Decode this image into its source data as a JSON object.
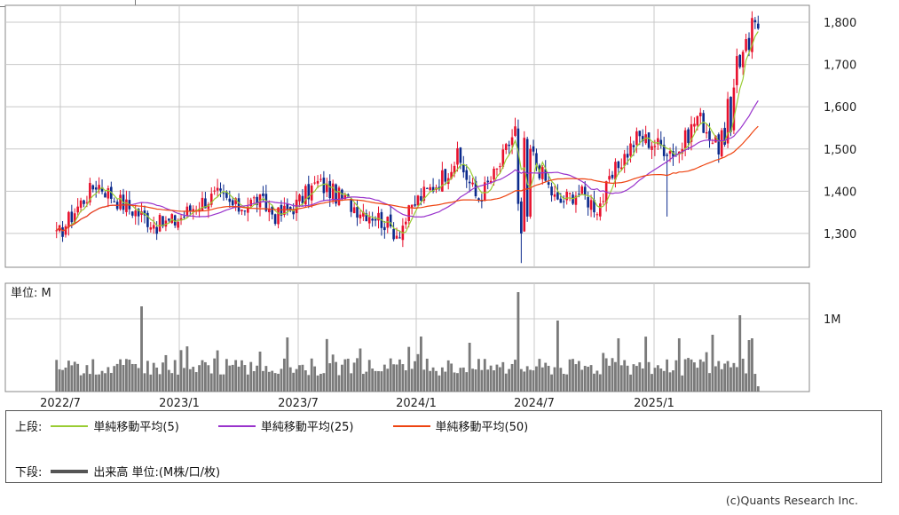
{
  "chart_data": [
    {
      "type": "candlestick",
      "x_tick_labels": [
        "2022/7",
        "2023/1",
        "2023/7",
        "2024/1",
        "2024/7",
        "2025/1"
      ],
      "y_tick_labels": [
        "1,800",
        "1,700",
        "1,600",
        "1,500",
        "1,400",
        "1,300"
      ],
      "y_ticks": [
        1800,
        1700,
        1600,
        1500,
        1400,
        1300
      ],
      "ylim": [
        1220,
        1840
      ],
      "grid": true,
      "up_color": "#e8112d",
      "down_color": "#0b2a8c",
      "series": [
        {
          "name": "単純移動平均(5)",
          "color": "#99cc33"
        },
        {
          "name": "単純移動平均(25)",
          "color": "#9933cc"
        },
        {
          "name": "単純移動平均(50)",
          "color": "#ee4411"
        }
      ],
      "approx_close_path": [
        {
          "date": "2022/7",
          "close": 1290
        },
        {
          "date": "2022/8",
          "close": 1360
        },
        {
          "date": "2022/9",
          "close": 1420
        },
        {
          "date": "2022/10",
          "close": 1380
        },
        {
          "date": "2022/11",
          "close": 1350
        },
        {
          "date": "2022/12",
          "close": 1320
        },
        {
          "date": "2023/1",
          "close": 1330
        },
        {
          "date": "2023/2",
          "close": 1370
        },
        {
          "date": "2023/3",
          "close": 1390
        },
        {
          "date": "2023/4",
          "close": 1360
        },
        {
          "date": "2023/5",
          "close": 1380
        },
        {
          "date": "2023/6",
          "close": 1340
        },
        {
          "date": "2023/7",
          "close": 1370
        },
        {
          "date": "2023/8",
          "close": 1420
        },
        {
          "date": "2023/9",
          "close": 1390
        },
        {
          "date": "2023/10",
          "close": 1360
        },
        {
          "date": "2023/11",
          "close": 1340
        },
        {
          "date": "2023/12",
          "close": 1300
        },
        {
          "date": "2024/1",
          "close": 1380
        },
        {
          "date": "2024/2",
          "close": 1420
        },
        {
          "date": "2024/3",
          "close": 1480
        },
        {
          "date": "2024/4",
          "close": 1380
        },
        {
          "date": "2024/5",
          "close": 1450
        },
        {
          "date": "2024/6",
          "close": 1560
        },
        {
          "date": "2024/7",
          "close": 1460
        },
        {
          "date": "2024/8",
          "close": 1370
        },
        {
          "date": "2024/9",
          "close": 1400
        },
        {
          "date": "2024/10",
          "close": 1360
        },
        {
          "date": "2024/11",
          "close": 1460
        },
        {
          "date": "2024/12",
          "close": 1530
        },
        {
          "date": "2025/1",
          "close": 1510
        },
        {
          "date": "2025/2",
          "close": 1490
        },
        {
          "date": "2025/3",
          "close": 1580
        },
        {
          "date": "2025/4",
          "close": 1500
        },
        {
          "date": "2025/5",
          "close": 1700
        },
        {
          "date": "2025/6",
          "close": 1790
        }
      ]
    },
    {
      "type": "bar",
      "unit_label": "単位: M",
      "y_tick_labels": [
        "1M"
      ],
      "x_tick_labels": [
        "2022/7",
        "2023/1",
        "2023/7",
        "2024/1",
        "2024/7",
        "2025/1"
      ],
      "bar_color": "#7a7a7a"
    }
  ],
  "legend": {
    "upper_label": "上段:",
    "lower_label": "下段:",
    "lower_item": "出来高 単位:(M株/口/枚)"
  },
  "credit": "(c)Quants Research Inc."
}
